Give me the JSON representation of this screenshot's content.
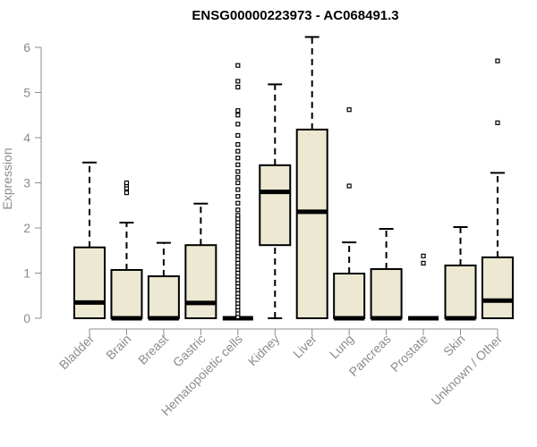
{
  "chart_data": {
    "type": "boxplot",
    "title": "ENSG00000223973 - AC068491.3",
    "ylabel": "Expression",
    "xlabel": "",
    "ylim": [
      0,
      6
    ],
    "yticks": [
      0,
      1,
      2,
      3,
      4,
      5,
      6
    ],
    "grid": false,
    "box_fill": "#ede8d2",
    "box_stroke": "#000000",
    "axis_color": "#8c8c8c",
    "categories": [
      "Bladder",
      "Brain",
      "Breast",
      "Gastric",
      "Hematopoietic cells",
      "Kidney",
      "Liver",
      "Lung",
      "Pancreas",
      "Prostate",
      "Skin",
      "Unknown / Other"
    ],
    "boxes": [
      {
        "min": 0,
        "q1": 0,
        "median": 0.35,
        "q3": 1.57,
        "max": 3.45,
        "outliers": []
      },
      {
        "min": 0,
        "q1": 0,
        "median": 0.0,
        "q3": 1.07,
        "max": 2.12,
        "outliers": [
          2.78,
          2.88,
          2.95,
          3.0
        ]
      },
      {
        "min": 0,
        "q1": 0,
        "median": 0.0,
        "q3": 0.93,
        "max": 1.67,
        "outliers": []
      },
      {
        "min": 0,
        "q1": 0,
        "median": 0.34,
        "q3": 1.62,
        "max": 2.54,
        "outliers": []
      },
      {
        "min": 0,
        "q1": 0,
        "median": 0.0,
        "q3": 0.0,
        "max": 0.0,
        "outliers": [
          0.03,
          0.1,
          0.18,
          0.25,
          0.33,
          0.4,
          0.48,
          0.55,
          0.63,
          0.7,
          0.78,
          0.85,
          0.93,
          1.0,
          1.08,
          1.15,
          1.22,
          1.3,
          1.38,
          1.45,
          1.52,
          1.6,
          1.68,
          1.75,
          1.82,
          1.9,
          1.98,
          2.05,
          2.12,
          2.2,
          2.28,
          2.4,
          2.55,
          2.7,
          2.85,
          3.0,
          3.12,
          3.25,
          3.4,
          3.55,
          3.7,
          3.85,
          4.05,
          4.3,
          4.5,
          4.6,
          5.12,
          5.25,
          5.6
        ]
      },
      {
        "min": 0,
        "q1": 1.62,
        "median": 2.8,
        "q3": 3.39,
        "max": 5.18,
        "outliers": []
      },
      {
        "min": 0,
        "q1": 0,
        "median": 2.36,
        "q3": 4.18,
        "max": 6.23,
        "outliers": []
      },
      {
        "min": 0,
        "q1": 0,
        "median": 0.0,
        "q3": 0.99,
        "max": 1.68,
        "outliers": [
          2.93,
          4.62
        ]
      },
      {
        "min": 0,
        "q1": 0,
        "median": 0.0,
        "q3": 1.09,
        "max": 1.98,
        "outliers": []
      },
      {
        "min": 0,
        "q1": 0,
        "median": 0.0,
        "q3": 0.0,
        "max": 0.0,
        "outliers": [
          1.22,
          1.38
        ]
      },
      {
        "min": 0,
        "q1": 0,
        "median": 0.0,
        "q3": 1.17,
        "max": 2.02,
        "outliers": []
      },
      {
        "min": 0,
        "q1": 0,
        "median": 0.39,
        "q3": 1.35,
        "max": 3.22,
        "outliers": [
          4.33,
          5.7
        ]
      }
    ]
  }
}
